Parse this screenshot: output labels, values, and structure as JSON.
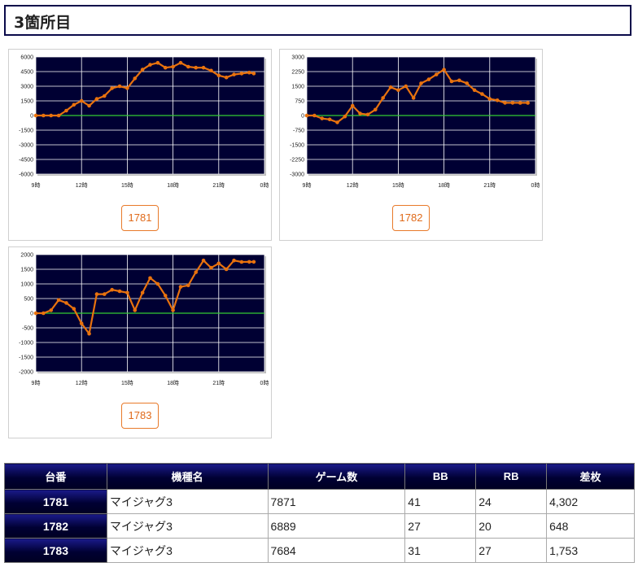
{
  "section": {
    "title": "3箇所目"
  },
  "chart_data": [
    {
      "type": "line",
      "button_label": "1781",
      "ylim": [
        -6000,
        6000
      ],
      "y_ticks": [
        6000,
        4500,
        3000,
        1500,
        0,
        -1500,
        -3000,
        -4500,
        -6000
      ],
      "y_tick_labels": [
        "6000",
        "4500",
        "3000",
        "1500",
        "0",
        "-1500",
        "-3000",
        "-4500",
        "-6000"
      ],
      "x_range": [
        9,
        24
      ],
      "x_ticks": [
        9,
        12,
        15,
        18,
        21,
        24
      ],
      "x_tick_labels": [
        "9時",
        "12時",
        "15時",
        "18時",
        "21時",
        "0時"
      ],
      "x": [
        9.0,
        9.5,
        10.0,
        10.5,
        11.0,
        11.5,
        12.0,
        12.5,
        13.0,
        13.5,
        14.0,
        14.5,
        15.0,
        15.5,
        16.0,
        16.5,
        17.0,
        17.5,
        18.0,
        18.5,
        19.0,
        19.5,
        20.0,
        20.5,
        21.0,
        21.5,
        22.0,
        22.5,
        23.0,
        23.3
      ],
      "values": [
        0,
        0,
        0,
        0,
        500,
        1100,
        1500,
        1000,
        1700,
        2000,
        2800,
        3000,
        2800,
        3800,
        4700,
        5200,
        5400,
        4900,
        5000,
        5400,
        5000,
        4900,
        4900,
        4600,
        4100,
        3900,
        4200,
        4300,
        4400,
        4302
      ],
      "line_color": "#e8720e",
      "zero_line_color": "#33cc33",
      "plot_bg": "#000033"
    },
    {
      "type": "line",
      "button_label": "1782",
      "ylim": [
        -3000,
        3000
      ],
      "y_ticks": [
        3000,
        2250,
        1500,
        750,
        0,
        -750,
        -1500,
        -2250,
        -3000
      ],
      "y_tick_labels": [
        "3000",
        "2250",
        "1500",
        "750",
        "0",
        "-750",
        "-1500",
        "-2250",
        "-3000"
      ],
      "x_range": [
        9,
        24
      ],
      "x_ticks": [
        9,
        12,
        15,
        18,
        21,
        24
      ],
      "x_tick_labels": [
        "9時",
        "12時",
        "15時",
        "18時",
        "21時",
        "0時"
      ],
      "x": [
        9.0,
        9.5,
        10.0,
        10.5,
        11.0,
        11.5,
        12.0,
        12.5,
        13.0,
        13.5,
        14.0,
        14.5,
        15.0,
        15.5,
        16.0,
        16.5,
        17.0,
        17.5,
        18.0,
        18.5,
        19.0,
        19.5,
        20.0,
        20.5,
        21.0,
        21.5,
        22.0,
        22.5,
        23.0,
        23.5
      ],
      "values": [
        0,
        0,
        -150,
        -200,
        -350,
        -50,
        500,
        100,
        50,
        300,
        900,
        1450,
        1300,
        1500,
        900,
        1650,
        1850,
        2100,
        2350,
        1750,
        1800,
        1650,
        1300,
        1100,
        850,
        780,
        650,
        650,
        648,
        648
      ],
      "line_color": "#e8720e",
      "zero_line_color": "#33cc33",
      "plot_bg": "#000033"
    },
    {
      "type": "line",
      "button_label": "1783",
      "ylim": [
        -2000,
        2000
      ],
      "y_ticks": [
        2000,
        1500,
        1000,
        500,
        0,
        -500,
        -1000,
        -1500,
        -2000
      ],
      "y_tick_labels": [
        "2000",
        "1500",
        "1000",
        "500",
        "0",
        "-500",
        "-1000",
        "-1500",
        "-2000"
      ],
      "x_range": [
        9,
        24
      ],
      "x_ticks": [
        9,
        12,
        15,
        18,
        21,
        24
      ],
      "x_tick_labels": [
        "9時",
        "12時",
        "15時",
        "18時",
        "21時",
        "0時"
      ],
      "x": [
        9.0,
        9.5,
        10.0,
        10.5,
        11.0,
        11.5,
        12.0,
        12.5,
        13.0,
        13.5,
        14.0,
        14.5,
        15.0,
        15.5,
        16.0,
        16.5,
        17.0,
        17.5,
        18.0,
        18.5,
        19.0,
        19.5,
        20.0,
        20.5,
        21.0,
        21.5,
        22.0,
        22.5,
        23.0,
        23.3
      ],
      "values": [
        0,
        0,
        100,
        450,
        350,
        150,
        -350,
        -700,
        650,
        650,
        800,
        750,
        700,
        100,
        700,
        1200,
        1000,
        600,
        100,
        900,
        950,
        1400,
        1800,
        1550,
        1700,
        1500,
        1800,
        1750,
        1753,
        1753
      ],
      "line_color": "#e8720e",
      "zero_line_color": "#33cc33",
      "plot_bg": "#000033"
    }
  ],
  "table": {
    "headers": [
      "台番",
      "機種名",
      "ゲーム数",
      "BB",
      "RB",
      "差枚"
    ],
    "rows": [
      [
        "1781",
        "マイジャグ3",
        "7871",
        "41",
        "24",
        "4,302"
      ],
      [
        "1782",
        "マイジャグ3",
        "6889",
        "27",
        "20",
        "648"
      ],
      [
        "1783",
        "マイジャグ3",
        "7684",
        "31",
        "27",
        "1,753"
      ]
    ]
  }
}
